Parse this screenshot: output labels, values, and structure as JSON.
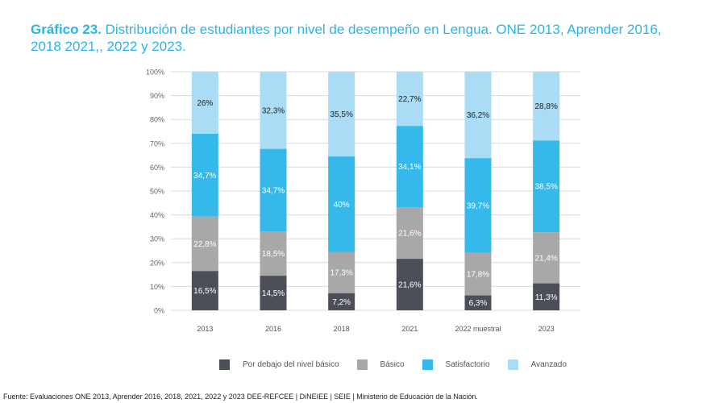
{
  "title": {
    "number": "Gráfico 23.",
    "text": "Distribución de estudiantes por nivel de desempeño en Lengua. ONE 2013, Aprender 2016, 2018 2021,, 2022 y 2023."
  },
  "source": "Fuente: Evaluaciones ONE 2013, Aprender 2016, 2018, 2021, 2022 y 2023 DEE-REFCEE | DiNEIEE | SEIE | Ministerio de Educación de la Nación.",
  "chart_data": {
    "type": "bar",
    "stacked": true,
    "title": "Distribución de estudiantes por nivel de desempeño en Lengua",
    "xlabel": "",
    "ylabel": "",
    "ylim": [
      0,
      100
    ],
    "yticks": [
      "0%",
      "10%",
      "20%",
      "30%",
      "40%",
      "50%",
      "60%",
      "70%",
      "80%",
      "90%",
      "100%"
    ],
    "categories": [
      "2013",
      "2016",
      "2018",
      "2021",
      "2022 muestral",
      "2023"
    ],
    "series": [
      {
        "name": "Por debajo del nivel básico",
        "color": "#4d4f58",
        "labelColor": "#ffffff",
        "values": [
          16.5,
          14.5,
          7.2,
          21.6,
          6.3,
          11.3
        ],
        "labels": [
          "16,5%",
          "14,5%",
          "7,2%",
          "21,6%",
          "6,3%",
          "11,3%"
        ]
      },
      {
        "name": "Básico",
        "color": "#a8a8a8",
        "labelColor": "#ffffff",
        "values": [
          22.8,
          18.5,
          17.3,
          21.6,
          17.8,
          21.4
        ],
        "labels": [
          "22,8%",
          "18,5%",
          "17,3%",
          "21,6%",
          "17,8%",
          "21,4%"
        ]
      },
      {
        "name": "Satisfactorio",
        "color": "#34b9ea",
        "labelColor": "#ffffff",
        "values": [
          34.7,
          34.7,
          40,
          34.1,
          39.7,
          38.5
        ],
        "labels": [
          "34,7%",
          "34,7%",
          "40%",
          "34,1%",
          "39,7%",
          "38,5%"
        ]
      },
      {
        "name": "Avanzado",
        "color": "#aadcf6",
        "labelColor": "#222222",
        "values": [
          26,
          32.3,
          35.5,
          22.7,
          36.2,
          28.8
        ],
        "labels": [
          "26%",
          "32,3%",
          "35,5%",
          "22,7%",
          "36,2%",
          "28,8%"
        ]
      }
    ],
    "legend_position": "bottom"
  }
}
